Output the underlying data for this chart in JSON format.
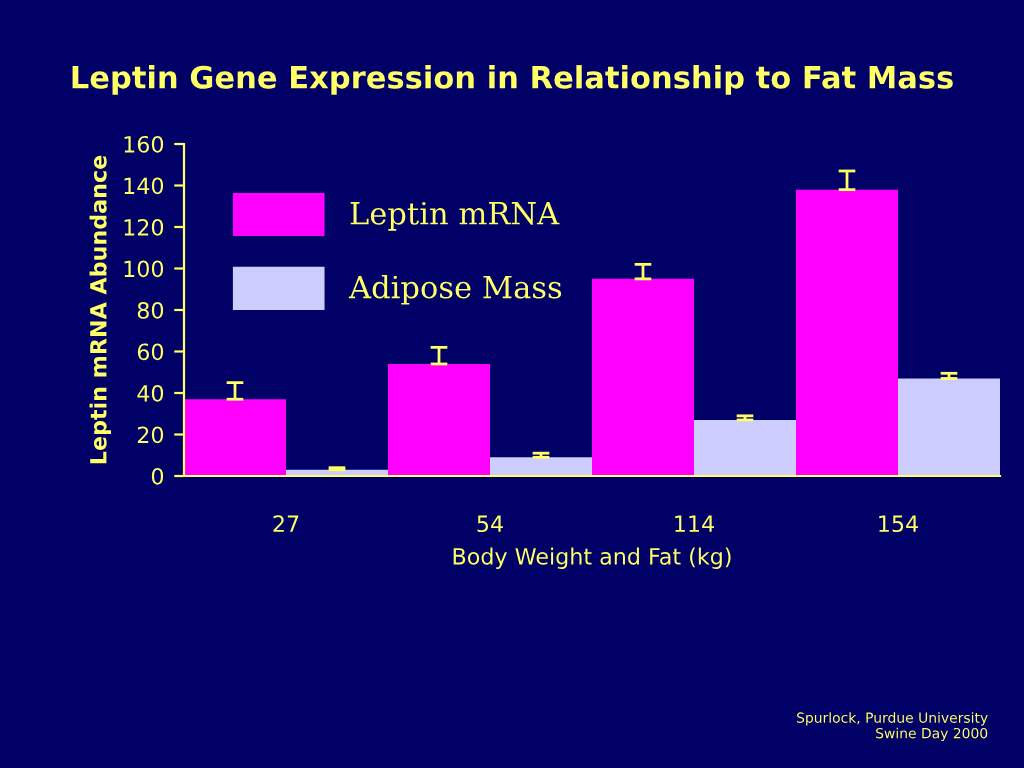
{
  "chart_data": {
    "type": "bar",
    "title": "Leptin Gene Expression in Relationship to Fat Mass",
    "xlabel": "Body Weight and Fat (kg)",
    "ylabel": "Leptin mRNA Abundance",
    "categories": [
      "27",
      "54",
      "114",
      "154"
    ],
    "series": [
      {
        "name": "Leptin mRNA",
        "color": "#ff00ff",
        "values": [
          37,
          54,
          95,
          138
        ],
        "errors": [
          [
            37,
            45
          ],
          [
            54,
            62
          ],
          [
            95,
            102
          ],
          [
            138,
            147
          ]
        ]
      },
      {
        "name": "Adipose Mass",
        "color": "#ccccff",
        "values": [
          3,
          9,
          27,
          47
        ],
        "errors": [
          [
            3,
            4
          ],
          [
            9,
            11
          ],
          [
            27,
            29
          ],
          [
            47,
            49.5
          ]
        ]
      }
    ],
    "ylim": [
      0,
      160
    ],
    "yticks": [
      0,
      20,
      40,
      60,
      80,
      100,
      120,
      140,
      160
    ],
    "grid": false,
    "legend": "top left",
    "annotations": [
      "Spurlock, Purdue University\nSwine Day 2000"
    ]
  }
}
